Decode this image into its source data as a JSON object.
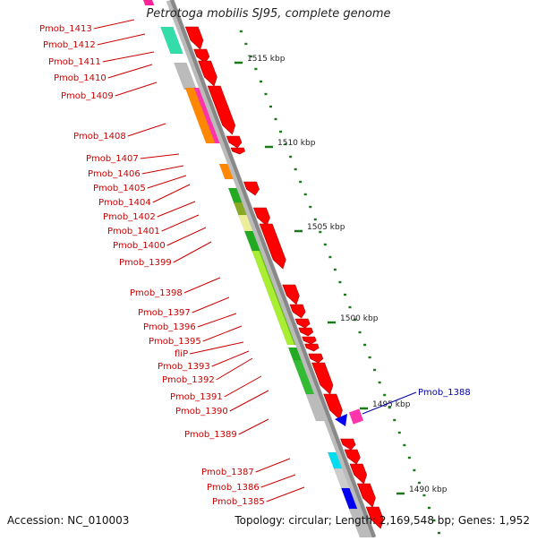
{
  "title": "Petrotoga mobilis SJ95, complete genome",
  "footer": {
    "accession": "Accession: NC_010003",
    "topology": "Topology: circular; Length: 2,169,548 bp; Genes: 1,952"
  },
  "scale_labels": [
    "1515 kbp",
    "1510 kbp",
    "1505 kbp",
    "1500 kbp",
    "1495 kbp",
    "1490 kbp"
  ],
  "gene_labels": [
    "Pmob_1413",
    "Pmob_1412",
    "Pmob_1411",
    "Pmob_1410",
    "Pmob_1409",
    "Pmob_1408",
    "Pmob_1407",
    "Pmob_1406",
    "Pmob_1405",
    "Pmob_1404",
    "Pmob_1402",
    "Pmob_1401",
    "Pmob_1400",
    "Pmob_1399",
    "Pmob_1398",
    "Pmob_1397",
    "Pmob_1396",
    "Pmob_1395",
    "fliP",
    "Pmob_1393",
    "Pmob_1392",
    "Pmob_1391",
    "Pmob_1390",
    "Pmob_1389",
    "Pmob_1387",
    "Pmob_1386",
    "Pmob_1385"
  ],
  "highlight_label": "Pmob_1388",
  "colors": {
    "label": "#cc0000",
    "highlight": "#0000aa",
    "arrow": "#ff0000",
    "backbone": "#888888",
    "tick": "#1a7a1a"
  }
}
